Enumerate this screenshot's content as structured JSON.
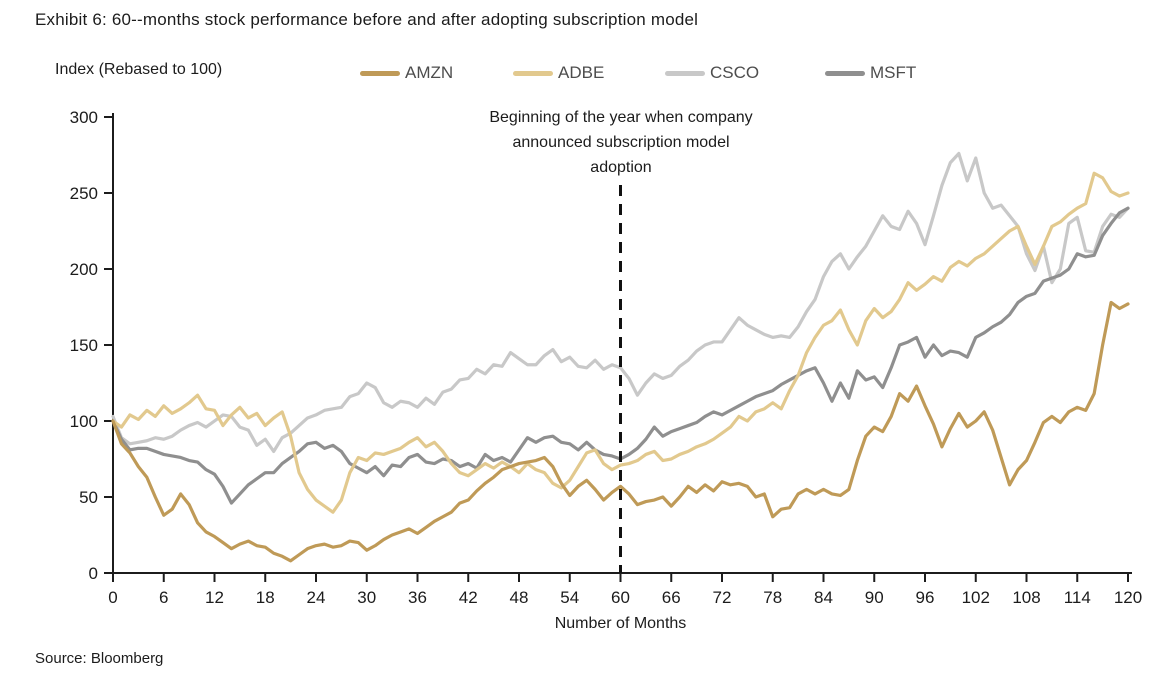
{
  "title": "Exhibit 6: 60--months stock performance before and after adopting subscription model",
  "index_label": "Index (Rebased to 100)",
  "annotation": "Beginning of the year when company\nannounced subscription model\nadoption",
  "source": "Source: Bloomberg",
  "chart_data": {
    "type": "line",
    "title": "Exhibit 6: 60--months stock performance before and after adopting subscription model",
    "xlabel": "Number of Months",
    "ylabel": "Index (Rebased to 100)",
    "xlim": [
      0,
      120
    ],
    "ylim": [
      0,
      300
    ],
    "x_ticks": [
      0,
      6,
      12,
      18,
      24,
      30,
      36,
      42,
      48,
      54,
      60,
      66,
      72,
      78,
      84,
      90,
      96,
      102,
      108,
      114,
      120
    ],
    "y_ticks": [
      0,
      50,
      100,
      150,
      200,
      250,
      300
    ],
    "grid": false,
    "legend_position": "top",
    "axis_color": "#1c1c1c",
    "event_line": {
      "x": 60,
      "style": "dashed",
      "color": "#111111",
      "label": "Beginning of the year when company announced subscription model adoption"
    },
    "x_step": 1,
    "series": [
      {
        "name": "AMZN",
        "color": "#BF9A57",
        "values": [
          100,
          85,
          79,
          70,
          63,
          50,
          38,
          42,
          52,
          45,
          33,
          27,
          24,
          20,
          16,
          19,
          21,
          18,
          17,
          13,
          11,
          8,
          12,
          16,
          18,
          19,
          17,
          18,
          21,
          20,
          15,
          18,
          22,
          25,
          27,
          29,
          26,
          30,
          34,
          37,
          40,
          46,
          48,
          54,
          59,
          63,
          68,
          70,
          72,
          73,
          74,
          76,
          70,
          59,
          51,
          57,
          61,
          55,
          48,
          53,
          57,
          52,
          45,
          47,
          48,
          50,
          44,
          50,
          57,
          53,
          58,
          54,
          60,
          58,
          59,
          57,
          50,
          52,
          37,
          42,
          43,
          52,
          55,
          52,
          55,
          52,
          51,
          55,
          74,
          90,
          96,
          93,
          103,
          118,
          113,
          123,
          110,
          98,
          83,
          95,
          105,
          96,
          100,
          106,
          94,
          76,
          58,
          68,
          74,
          86,
          99,
          103,
          99,
          106,
          109,
          107,
          118,
          150,
          178,
          174,
          177
        ]
      },
      {
        "name": "ADBE",
        "color": "#E2C98E",
        "values": [
          100,
          96,
          104,
          101,
          107,
          103,
          110,
          105,
          108,
          112,
          117,
          108,
          107,
          97,
          104,
          109,
          102,
          105,
          97,
          102,
          106,
          90,
          66,
          55,
          48,
          44,
          40,
          48,
          66,
          76,
          74,
          79,
          78,
          80,
          82,
          86,
          89,
          83,
          86,
          80,
          72,
          66,
          64,
          68,
          72,
          69,
          73,
          70,
          66,
          72,
          68,
          66,
          59,
          56,
          61,
          70,
          79,
          81,
          72,
          68,
          71,
          72,
          74,
          78,
          80,
          74,
          75,
          78,
          80,
          83,
          85,
          88,
          92,
          96,
          103,
          100,
          106,
          108,
          112,
          108,
          120,
          130,
          145,
          155,
          163,
          166,
          173,
          160,
          150,
          166,
          174,
          168,
          172,
          180,
          191,
          186,
          190,
          195,
          192,
          201,
          205,
          202,
          207,
          210,
          215,
          220,
          225,
          228,
          215,
          203,
          215,
          228,
          231,
          236,
          240,
          243,
          263,
          260,
          251,
          248,
          250
        ]
      },
      {
        "name": "CSCO",
        "color": "#C8C8C8",
        "values": [
          103,
          89,
          85,
          86,
          87,
          89,
          88,
          90,
          94,
          97,
          99,
          96,
          100,
          104,
          103,
          96,
          94,
          84,
          88,
          80,
          89,
          92,
          97,
          102,
          104,
          107,
          108,
          109,
          116,
          118,
          125,
          122,
          112,
          109,
          113,
          112,
          109,
          115,
          111,
          119,
          121,
          127,
          128,
          134,
          131,
          137,
          136,
          145,
          141,
          137,
          137,
          143,
          147,
          139,
          142,
          136,
          135,
          140,
          134,
          137,
          135,
          128,
          117,
          125,
          131,
          128,
          130,
          136,
          140,
          146,
          150,
          152,
          152,
          160,
          168,
          163,
          160,
          157,
          155,
          156,
          155,
          162,
          172,
          180,
          195,
          205,
          210,
          200,
          208,
          215,
          225,
          235,
          228,
          226,
          238,
          230,
          216,
          235,
          255,
          270,
          276,
          258,
          273,
          250,
          240,
          242,
          235,
          228,
          210,
          199,
          215,
          191,
          200,
          230,
          234,
          212,
          211,
          228,
          236,
          234,
          240
        ]
      },
      {
        "name": "MSFT",
        "color": "#8F8F8F",
        "values": [
          100,
          88,
          81,
          82,
          82,
          80,
          78,
          77,
          76,
          74,
          73,
          68,
          65,
          57,
          46,
          52,
          58,
          62,
          66,
          66,
          72,
          76,
          80,
          85,
          86,
          82,
          84,
          80,
          72,
          69,
          66,
          70,
          64,
          71,
          70,
          76,
          78,
          73,
          72,
          75,
          74,
          70,
          72,
          69,
          78,
          74,
          76,
          73,
          81,
          89,
          86,
          89,
          90,
          86,
          85,
          81,
          86,
          81,
          78,
          77,
          75,
          78,
          82,
          88,
          96,
          90,
          93,
          95,
          97,
          99,
          103,
          106,
          104,
          107,
          110,
          113,
          116,
          118,
          120,
          124,
          127,
          130,
          133,
          135,
          125,
          113,
          125,
          115,
          133,
          127,
          129,
          122,
          135,
          150,
          152,
          155,
          142,
          150,
          143,
          146,
          145,
          142,
          155,
          158,
          162,
          165,
          170,
          178,
          182,
          184,
          192,
          194,
          196,
          200,
          210,
          208,
          209,
          222,
          230,
          237,
          240
        ]
      }
    ]
  }
}
